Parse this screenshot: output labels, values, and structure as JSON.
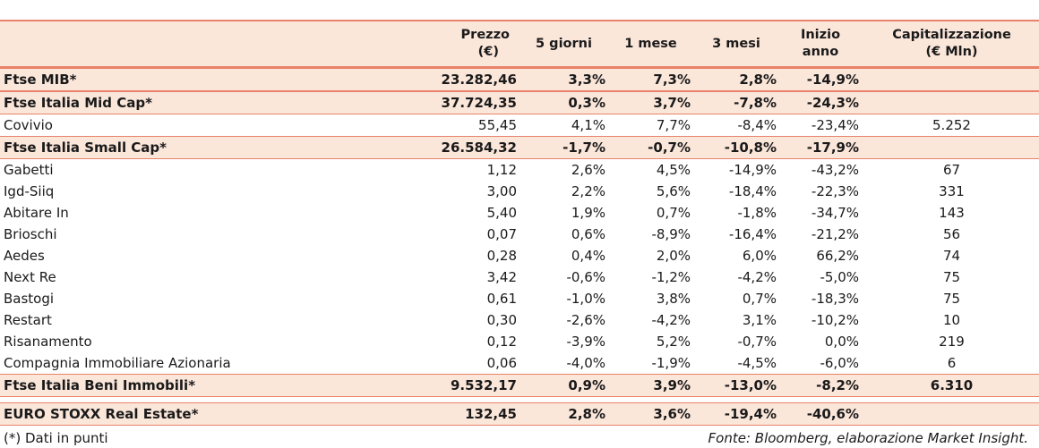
{
  "header": {
    "col0": "",
    "price_line1": "Prezzo",
    "price_line2": "(€)",
    "d5": "5 giorni",
    "m1": "1 mese",
    "m3": "3 mesi",
    "ytd": "Inizio anno",
    "cap_line1": "Capitalizzazione",
    "cap_line2": "(€ Mln)"
  },
  "rows": [
    {
      "name": "Ftse MIB*",
      "price": "23.282,46",
      "d5": "3,3%",
      "m1": "7,3%",
      "m3": "2,8%",
      "ytd": "-14,9%",
      "cap": ""
    },
    {
      "name": "Ftse Italia Mid Cap*",
      "price": "37.724,35",
      "d5": "0,3%",
      "m1": "3,7%",
      "m3": "-7,8%",
      "ytd": "-24,3%",
      "cap": ""
    },
    {
      "name": "Covivio",
      "price": "55,45",
      "d5": "4,1%",
      "m1": "7,7%",
      "m3": "-8,4%",
      "ytd": "-23,4%",
      "cap": "5.252"
    },
    {
      "name": "Ftse Italia Small Cap*",
      "price": "26.584,32",
      "d5": "-1,7%",
      "m1": "-0,7%",
      "m3": "-10,8%",
      "ytd": "-17,9%",
      "cap": ""
    },
    {
      "name": "Gabetti",
      "price": "1,12",
      "d5": "2,6%",
      "m1": "4,5%",
      "m3": "-14,9%",
      "ytd": "-43,2%",
      "cap": "67"
    },
    {
      "name": "Igd-Siiq",
      "price": "3,00",
      "d5": "2,2%",
      "m1": "5,6%",
      "m3": "-18,4%",
      "ytd": "-22,3%",
      "cap": "331"
    },
    {
      "name": "Abitare In",
      "price": "5,40",
      "d5": "1,9%",
      "m1": "0,7%",
      "m3": "-1,8%",
      "ytd": "-34,7%",
      "cap": "143"
    },
    {
      "name": "Brioschi",
      "price": "0,07",
      "d5": "0,6%",
      "m1": "-8,9%",
      "m3": "-16,4%",
      "ytd": "-21,2%",
      "cap": "56"
    },
    {
      "name": "Aedes",
      "price": "0,28",
      "d5": "0,4%",
      "m1": "2,0%",
      "m3": "6,0%",
      "ytd": "66,2%",
      "cap": "74"
    },
    {
      "name": "Next Re",
      "price": "3,42",
      "d5": "-0,6%",
      "m1": "-1,2%",
      "m3": "-4,2%",
      "ytd": "-5,0%",
      "cap": "75"
    },
    {
      "name": "Bastogi",
      "price": "0,61",
      "d5": "-1,0%",
      "m1": "3,8%",
      "m3": "0,7%",
      "ytd": "-18,3%",
      "cap": "75"
    },
    {
      "name": "Restart",
      "price": "0,30",
      "d5": "-2,6%",
      "m1": "-4,2%",
      "m3": "3,1%",
      "ytd": "-10,2%",
      "cap": "10"
    },
    {
      "name": "Risanamento",
      "price": "0,12",
      "d5": "-3,9%",
      "m1": "5,2%",
      "m3": "-0,7%",
      "ytd": "0,0%",
      "cap": "219"
    },
    {
      "name": "Compagnia Immobiliare Azionaria",
      "price": "0,06",
      "d5": "-4,0%",
      "m1": "-1,9%",
      "m3": "-4,5%",
      "ytd": "-6,0%",
      "cap": "6"
    },
    {
      "name": "Ftse Italia Beni Immobili*",
      "price": "9.532,17",
      "d5": "0,9%",
      "m1": "3,9%",
      "m3": "-13,0%",
      "ytd": "-8,2%",
      "cap": "6.310"
    },
    {
      "name": "EURO STOXX Real Estate*",
      "price": "132,45",
      "d5": "2,8%",
      "m1": "3,6%",
      "m3": "-19,4%",
      "ytd": "-40,6%",
      "cap": ""
    }
  ],
  "footer": {
    "note": "(*) Dati in punti",
    "source": "Fonte: Bloomberg, elaborazione Market Insight."
  },
  "colors": {
    "header_bg": "#fbe6da",
    "border": "#e8826a"
  }
}
